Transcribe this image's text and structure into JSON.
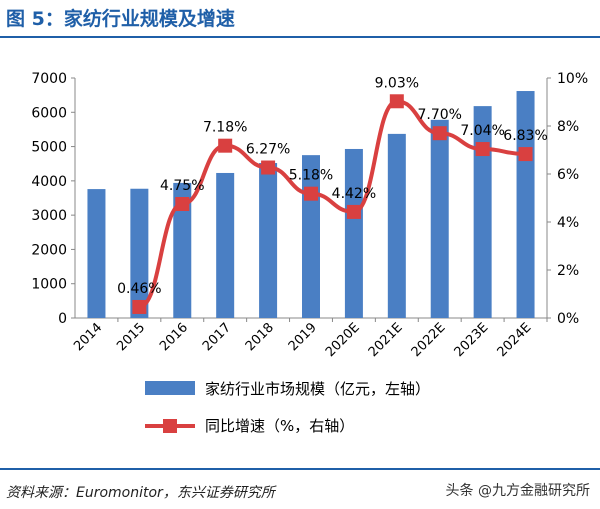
{
  "title": "图 5：家纺行业规模及增速",
  "source": "资料来源：Euromonitor，东兴证券研究所",
  "watermark": "头条 @九方金融研究所",
  "chart_data": {
    "type": "bar+line",
    "categories": [
      "2014",
      "2015",
      "2016",
      "2017",
      "2018",
      "2019",
      "2020E",
      "2021E",
      "2022E",
      "2023E",
      "2024E"
    ],
    "series": [
      {
        "name": "家纺行业市场规模（亿元，左轴）",
        "type": "bar",
        "axis": "left",
        "color": "#4a7fc4",
        "values": [
          3760,
          3770,
          3940,
          4230,
          4520,
          4750,
          4930,
          5370,
          5780,
          6180,
          6620
        ]
      },
      {
        "name": "同比增速（%，右轴）",
        "type": "line",
        "axis": "right",
        "color": "#d94040",
        "values": [
          null,
          0.46,
          4.75,
          7.18,
          6.27,
          5.18,
          4.42,
          9.03,
          7.7,
          7.04,
          6.83
        ],
        "labels": [
          "",
          "0.46%",
          "4.75%",
          "7.18%",
          "6.27%",
          "5.18%",
          "4.42%",
          "9.03%",
          "7.70%",
          "7.04%",
          "6.83%"
        ]
      }
    ],
    "left_axis": {
      "ylim": [
        0,
        7000
      ],
      "ticks": [
        "0",
        "1000",
        "2000",
        "3000",
        "4000",
        "5000",
        "6000",
        "7000"
      ]
    },
    "right_axis": {
      "ylim": [
        0,
        10
      ],
      "ticks": [
        "0%",
        "2%",
        "4%",
        "6%",
        "8%",
        "10%"
      ]
    },
    "grid": false,
    "legend": "bottom"
  }
}
